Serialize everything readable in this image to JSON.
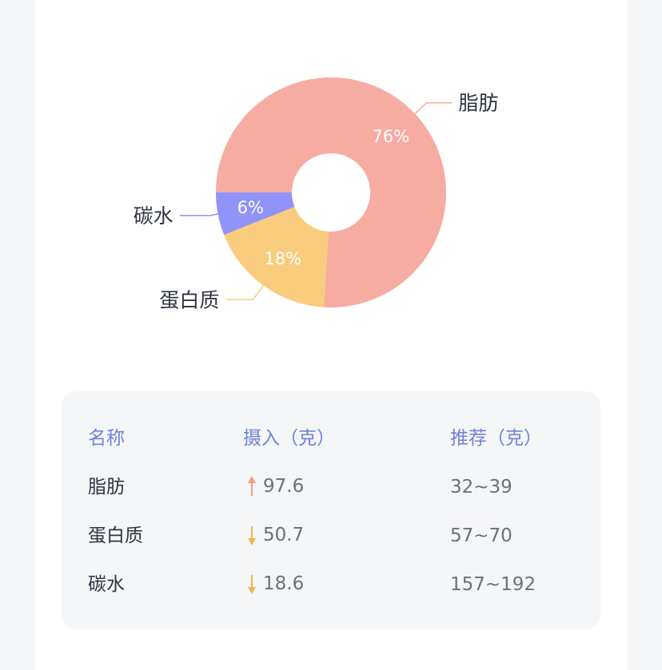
{
  "chart_data": {
    "type": "pie",
    "slices": [
      {
        "label": "脂肪",
        "percent": 76,
        "percent_label": "76%",
        "color": "#f7aca2"
      },
      {
        "label": "蛋白质",
        "percent": 18,
        "percent_label": "18%",
        "color": "#f9cc7e"
      },
      {
        "label": "碳水",
        "percent": 6,
        "percent_label": "6%",
        "color": "#9093f8"
      }
    ]
  },
  "table": {
    "headers": [
      "名称",
      "摄入（克）",
      "推荐（克）"
    ],
    "rows": [
      {
        "name": "脂肪",
        "intake": "97.6",
        "trend": "up",
        "trend_color": "#f4a07e",
        "recommended": "32~39"
      },
      {
        "name": "蛋白质",
        "intake": "50.7",
        "trend": "down",
        "trend_color": "#f5b350",
        "recommended": "57~70"
      },
      {
        "name": "碳水",
        "intake": "18.6",
        "trend": "down",
        "trend_color": "#f5b350",
        "recommended": "157~192"
      }
    ]
  }
}
